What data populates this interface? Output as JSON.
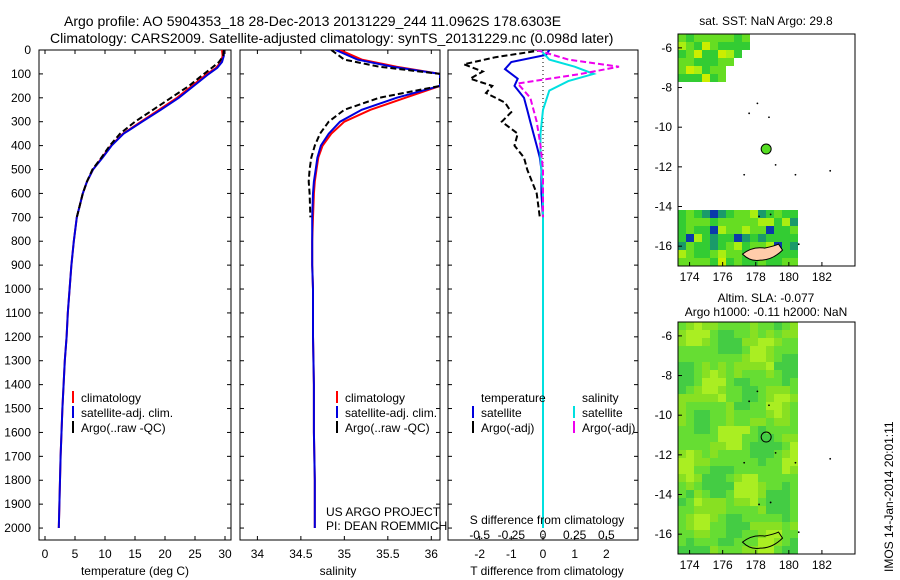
{
  "header": {
    "line1": "Argo profile: AO 5904353_18 28-Dec-2013 20131229_244 11.0962S 178.6303E",
    "line2": "Climatology: CARS2009. Satellite-adjusted climatology: synTS_20131229.nc (0.098d later)"
  },
  "footer": {
    "project": "US ARGO PROJECT",
    "pi": "PI: DEAN ROEMMICH",
    "stamp": "IMOS 14-Jan-2014 20:01:11"
  },
  "colors": {
    "climatology": "#ff0000",
    "satellite": "#0000dd",
    "argo": "#000000",
    "salinity_sat": "#00e0e0",
    "salinity_argo": "#ee00ee"
  },
  "panels": {
    "temperature": {
      "xlabel": "temperature (deg C)",
      "legend": [
        "climatology",
        "satellite-adj. clim.",
        "Argo(..raw -QC)"
      ]
    },
    "salinity": {
      "xlabel": "salinity",
      "legend": [
        "climatology",
        "satellite-adj. clim.",
        "Argo(..raw -QC)"
      ]
    },
    "difference": {
      "top_label": "S difference from climatology",
      "bottom_label": "T difference from climatology",
      "legend_head_t": "temperature",
      "legend_head_s": "salinity",
      "legend_t": [
        "satellite",
        "Argo(-adj)"
      ],
      "legend_s": [
        "satellite",
        "Argo(-adj)"
      ]
    },
    "sst_map": {
      "title": "sat. SST: NaN Argo: 29.8"
    },
    "sla_map": {
      "title1": "Altim. SLA: -0.077",
      "title2": "Argo h1000: -0.11 h2000: NaN"
    }
  },
  "chart_data": [
    {
      "type": "line",
      "name": "temperature",
      "xlabel": "temperature (deg C)",
      "ylabel": "",
      "xlim": [
        -1,
        31
      ],
      "ylim": [
        2050,
        0
      ],
      "xticks": [
        0,
        5,
        10,
        15,
        20,
        25,
        30
      ],
      "yticks": [
        0,
        100,
        200,
        300,
        400,
        500,
        600,
        700,
        800,
        900,
        1000,
        1100,
        1200,
        1300,
        1400,
        1500,
        1600,
        1700,
        1800,
        1900,
        2000
      ],
      "series": [
        {
          "name": "climatology",
          "color": "#ff0000",
          "x": [
            29.5,
            29.6,
            29.3,
            28.5,
            27,
            24.5,
            22,
            19,
            16,
            13,
            11,
            9.5,
            8,
            7,
            6.3,
            5.8,
            5.3,
            4.8,
            4.4,
            4.1,
            3.8,
            3.6,
            3.3,
            3.1,
            2.9,
            2.75,
            2.6,
            2.5,
            2.4,
            2.3
          ],
          "y": [
            0,
            25,
            50,
            75,
            100,
            150,
            200,
            250,
            300,
            350,
            400,
            450,
            500,
            550,
            600,
            650,
            700,
            800,
            900,
            1000,
            1100,
            1200,
            1300,
            1400,
            1500,
            1600,
            1700,
            1800,
            1900,
            2000
          ]
        },
        {
          "name": "satellite-adj. clim.",
          "color": "#0000dd",
          "x": [
            29.8,
            29.8,
            29.5,
            28.7,
            27.3,
            24.8,
            22.3,
            19.3,
            16.2,
            13.1,
            11.1,
            9.6,
            8,
            7,
            6.3,
            5.8,
            5.3,
            4.8,
            4.4,
            4.1,
            3.8,
            3.6,
            3.3,
            3.1,
            2.9,
            2.75,
            2.6,
            2.5,
            2.4,
            2.3
          ],
          "y": [
            0,
            25,
            50,
            75,
            100,
            150,
            200,
            250,
            300,
            350,
            400,
            450,
            500,
            550,
            600,
            650,
            700,
            800,
            900,
            1000,
            1100,
            1200,
            1300,
            1400,
            1500,
            1600,
            1700,
            1800,
            1900,
            2000
          ]
        },
        {
          "name": "Argo(..raw -QC)",
          "color": "#000000",
          "dash": true,
          "x": [
            29.8,
            29.7,
            29.0,
            27.8,
            26.5,
            24,
            21,
            18,
            15,
            12.5,
            10.8,
            9.4,
            7.9,
            7,
            6.3,
            5.8,
            5.3
          ],
          "y": [
            0,
            25,
            50,
            75,
            100,
            150,
            200,
            250,
            300,
            350,
            400,
            450,
            500,
            550,
            600,
            650,
            700
          ]
        }
      ]
    },
    {
      "type": "line",
      "name": "salinity",
      "xlabel": "salinity",
      "ylabel": "",
      "xlim": [
        33.8,
        36.1
      ],
      "ylim": [
        2050,
        0
      ],
      "xticks": [
        34,
        34.5,
        35,
        35.5,
        36
      ],
      "series": [
        {
          "name": "climatology",
          "color": "#ff0000",
          "x": [
            34.95,
            35.2,
            35.6,
            36.1,
            36.1,
            35.7,
            35.3,
            35.0,
            34.85,
            34.75,
            34.7,
            34.68,
            34.66,
            34.65,
            34.64,
            34.63,
            34.63,
            34.64,
            34.64,
            34.65,
            34.65,
            34.66,
            34.66
          ],
          "y": [
            0,
            40,
            70,
            100,
            150,
            200,
            250,
            300,
            350,
            400,
            450,
            500,
            550,
            600,
            700,
            800,
            900,
            1000,
            1200,
            1400,
            1600,
            1800,
            2000
          ]
        },
        {
          "name": "satellite-adj. clim.",
          "color": "#0000dd",
          "x": [
            34.9,
            35.15,
            35.55,
            36.1,
            36.1,
            35.6,
            35.2,
            34.95,
            34.82,
            34.73,
            34.69,
            34.67,
            34.65,
            34.64,
            34.63,
            34.63,
            34.63,
            34.64,
            34.64,
            34.65,
            34.65,
            34.66,
            34.66
          ],
          "y": [
            0,
            40,
            70,
            100,
            150,
            200,
            250,
            300,
            350,
            400,
            450,
            500,
            550,
            600,
            700,
            800,
            900,
            1000,
            1200,
            1400,
            1600,
            1800,
            2000
          ]
        },
        {
          "name": "Argo(..raw -QC)",
          "color": "#000000",
          "dash": true,
          "x": [
            34.85,
            35.0,
            35.4,
            36.1,
            36.1,
            35.4,
            35.0,
            34.82,
            34.72,
            34.66,
            34.62,
            34.6,
            34.59,
            34.6,
            34.61
          ],
          "y": [
            0,
            40,
            70,
            100,
            150,
            200,
            250,
            300,
            350,
            400,
            450,
            500,
            550,
            600,
            700
          ]
        }
      ]
    },
    {
      "type": "line",
      "name": "differences",
      "xlabel": "T difference from climatology",
      "x2label": "S difference from climatology",
      "xlim": [
        -3,
        3
      ],
      "x2lim": [
        -0.75,
        0.75
      ],
      "ylim": [
        2050,
        0
      ],
      "xticks": [
        -2,
        -1,
        0,
        1,
        2
      ],
      "x2ticks": [
        -0.5,
        -0.25,
        0,
        0.25,
        0.5
      ],
      "series": [
        {
          "name": "temperature satellite",
          "axis": "T",
          "color": "#0000dd",
          "x": [
            0.2,
            0.1,
            -1.0,
            -1.2,
            -0.8,
            -0.9,
            -0.6,
            -0.5,
            -0.4,
            -0.3,
            -0.2,
            -0.1,
            -0.05,
            -0.05,
            0,
            0,
            0,
            0,
            0,
            0
          ],
          "y": [
            0,
            20,
            50,
            80,
            120,
            150,
            200,
            250,
            300,
            350,
            400,
            450,
            500,
            600,
            700,
            800,
            1000,
            1400,
            1800,
            2000
          ]
        },
        {
          "name": "temperature Argo(-adj)",
          "axis": "T",
          "color": "#000000",
          "dash": true,
          "x": [
            0,
            -1.5,
            -2.5,
            -1.9,
            -2.3,
            -1.6,
            -1.8,
            -1.2,
            -1.0,
            -1.3,
            -0.8,
            -0.9,
            -0.6,
            -0.5,
            -0.2,
            -0.1
          ],
          "y": [
            0,
            30,
            60,
            90,
            120,
            150,
            180,
            220,
            260,
            300,
            350,
            400,
            450,
            500,
            600,
            700
          ]
        },
        {
          "name": "salinity satellite",
          "axis": "S",
          "color": "#00e0e0",
          "x": [
            -0.02,
            0.05,
            0.25,
            0.4,
            0.2,
            0.05,
            0.0,
            -0.02,
            -0.02,
            0,
            0,
            0,
            0,
            0,
            0
          ],
          "y": [
            0,
            40,
            70,
            100,
            130,
            170,
            250,
            350,
            450,
            600,
            800,
            1000,
            1400,
            1800,
            2000
          ]
        },
        {
          "name": "salinity Argo(-adj)",
          "axis": "S",
          "color": "#ee00ee",
          "dash": true,
          "x": [
            -0.05,
            0.2,
            0.6,
            0.3,
            -0.2,
            -0.1,
            -0.05,
            -0.02,
            0,
            0,
            0
          ],
          "y": [
            0,
            40,
            70,
            100,
            140,
            200,
            300,
            400,
            500,
            600,
            700
          ]
        }
      ]
    },
    {
      "type": "heatmap",
      "name": "SST map",
      "title": "sat. SST: NaN Argo: 29.8",
      "xlim": [
        173.3,
        184
      ],
      "ylim": [
        -17,
        -5.3
      ],
      "xticks": [
        174,
        176,
        178,
        180,
        182
      ],
      "yticks": [
        -6,
        -8,
        -10,
        -12,
        -14,
        -16
      ],
      "marker": {
        "lon": 178.63,
        "lat": -11.1
      }
    },
    {
      "type": "heatmap",
      "name": "SLA map",
      "title": "Altim. SLA: -0.077",
      "xlim": [
        173.3,
        184
      ],
      "ylim": [
        -17,
        -5.3
      ],
      "xticks": [
        174,
        176,
        178,
        180,
        182
      ],
      "yticks": [
        -6,
        -8,
        -10,
        -12,
        -14,
        -16
      ],
      "marker": {
        "lon": 178.63,
        "lat": -11.1
      }
    }
  ]
}
